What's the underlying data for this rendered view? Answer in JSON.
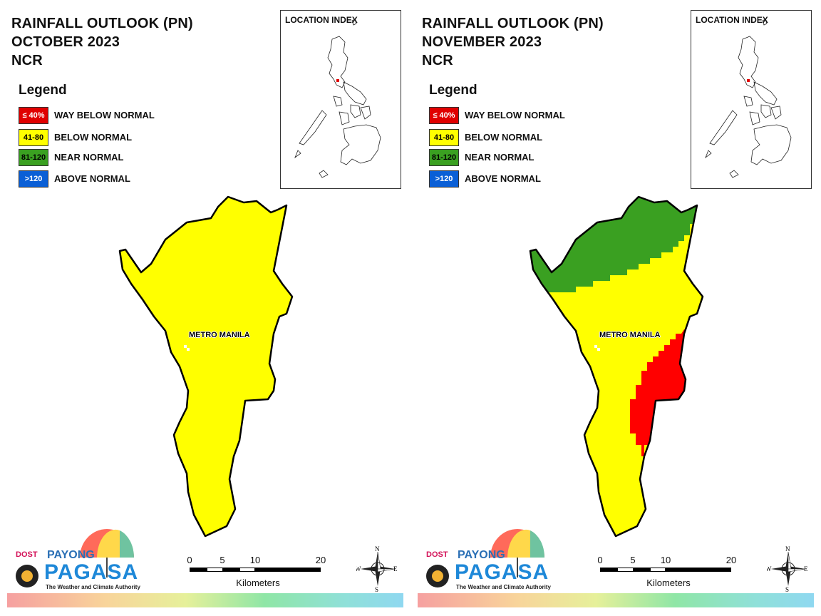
{
  "colors": {
    "way_below": "#e00000",
    "below": "#ffff00",
    "near": "#3aa021",
    "above": "#0a5fd6"
  },
  "legend": {
    "title": "Legend",
    "items": [
      {
        "swatch": "≤ 40%",
        "label": "WAY BELOW NORMAL",
        "color": "#e00000",
        "text_color": "#ffffff"
      },
      {
        "swatch": "41-80",
        "label": "BELOW NORMAL",
        "color": "#ffff00",
        "text_color": "#000000"
      },
      {
        "swatch": "81-120",
        "label": "NEAR NORMAL",
        "color": "#3aa021",
        "text_color": "#000000"
      },
      {
        "swatch": ">120",
        "label": "ABOVE NORMAL",
        "color": "#0a5fd6",
        "text_color": "#ffffff"
      }
    ]
  },
  "location_index_title": "LOCATION INDEX",
  "place_label": "METRO MANILA",
  "scale": {
    "ticks": [
      "0",
      "5",
      "10",
      "20"
    ],
    "unit": "Kilometers"
  },
  "compass": {
    "n": "N",
    "s": "S",
    "e": "E",
    "w": "W"
  },
  "logo": {
    "dost": "DOST",
    "payong": "PAYONG",
    "pagasa": "PAGASA",
    "tagline": "The Weather and Climate Authority"
  },
  "panels": [
    {
      "title_line1": "RAINFALL OUTLOOK (PN)",
      "title_line2": "OCTOBER 2023",
      "title_line3": "NCR",
      "zones": [
        "below"
      ]
    },
    {
      "title_line1": "RAINFALL OUTLOOK (PN)",
      "title_line2": "NOVEMBER 2023",
      "title_line3": "NCR",
      "zones": [
        "near",
        "below",
        "way_below"
      ]
    }
  ]
}
